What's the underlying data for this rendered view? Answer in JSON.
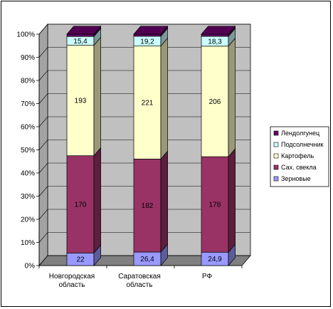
{
  "chart_data": {
    "type": "bar",
    "stacked": "percent",
    "categories": [
      "Новгородская область",
      "Саратовская область",
      "РФ"
    ],
    "categories_lines": [
      [
        "Новгородская",
        "область"
      ],
      [
        "Саратовская",
        "область"
      ],
      [
        "РФ"
      ]
    ],
    "series": [
      {
        "name": "Зерновые",
        "values": [
          22,
          26.4,
          24.9
        ],
        "labels": [
          "22",
          "26,4",
          "24,9"
        ],
        "color": "#9999ff"
      },
      {
        "name": "Сах. свекла",
        "values": [
          170,
          182,
          178
        ],
        "labels": [
          "170",
          "182",
          "178"
        ],
        "color": "#993366"
      },
      {
        "name": "Картофель",
        "values": [
          193,
          221,
          206
        ],
        "labels": [
          "193",
          "221",
          "206"
        ],
        "color": "#ffffcc"
      },
      {
        "name": "Подсолнечник",
        "values": [
          15.4,
          19.2,
          18.3
        ],
        "labels": [
          "15,4",
          "19,2",
          "18,3"
        ],
        "color": "#ccffff"
      },
      {
        "name": "Лендолгунец",
        "values": [
          4,
          4,
          4
        ],
        "labels": [
          "",
          "",
          ""
        ],
        "color": "#660066"
      }
    ],
    "yticks": [
      "0%",
      "10%",
      "20%",
      "30%",
      "40%",
      "50%",
      "60%",
      "70%",
      "80%",
      "90%",
      "100%"
    ],
    "ylim": [
      0,
      100
    ],
    "grid": true,
    "legend": "right",
    "wall_color": "#c0c0c0",
    "floor_color": "#808080"
  }
}
